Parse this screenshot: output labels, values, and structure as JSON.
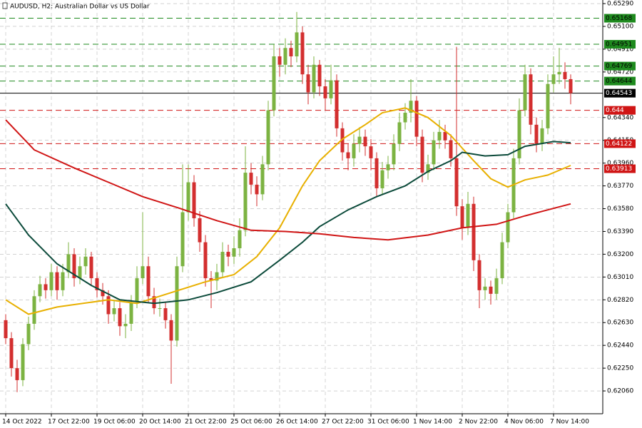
{
  "chart_data": {
    "type": "candlestick",
    "title": "AUDUSD, H2:  Australian Dollar vs US Dollar",
    "up_color": "#7cb342",
    "down_color": "#d32f2f",
    "ylim": [
      0.6187,
      0.6532
    ],
    "yticks": [
      {
        "value": 0.6529,
        "label": "0.65290"
      },
      {
        "value": 0.651,
        "label": "0.65100"
      },
      {
        "value": 0.6491,
        "label": "0.64910"
      },
      {
        "value": 0.6472,
        "label": "0.64720"
      },
      {
        "value": 0.6434,
        "label": "0.64340"
      },
      {
        "value": 0.6415,
        "label": "0.64150"
      },
      {
        "value": 0.6396,
        "label": "0.63960"
      },
      {
        "value": 0.6377,
        "label": "0.63770"
      },
      {
        "value": 0.6358,
        "label": "0.63580"
      },
      {
        "value": 0.6339,
        "label": "0.63390"
      },
      {
        "value": 0.632,
        "label": "0.63200"
      },
      {
        "value": 0.6301,
        "label": "0.63010"
      },
      {
        "value": 0.6282,
        "label": "0.62820"
      },
      {
        "value": 0.6263,
        "label": "0.62630"
      },
      {
        "value": 0.6244,
        "label": "0.62440"
      },
      {
        "value": 0.6225,
        "label": "0.62250"
      },
      {
        "value": 0.6206,
        "label": "0.62060"
      }
    ],
    "xticks": [
      {
        "value": 0,
        "label": "14 Oct 2022"
      },
      {
        "value": 8,
        "label": "17 Oct 22:00"
      },
      {
        "value": 16,
        "label": "19 Oct 06:00"
      },
      {
        "value": 24,
        "label": "20 Oct 14:00"
      },
      {
        "value": 32,
        "label": "21 Oct 22:00"
      },
      {
        "value": 40,
        "label": "25 Oct 06:00"
      },
      {
        "value": 48,
        "label": "26 Oct 14:00"
      },
      {
        "value": 56,
        "label": "27 Oct 22:00"
      },
      {
        "value": 64,
        "label": "31 Oct 06:00"
      },
      {
        "value": 72,
        "label": "1 Nov 14:00"
      },
      {
        "value": 80,
        "label": "2 Nov 22:00"
      },
      {
        "value": 88,
        "label": "4 Nov 06:00"
      },
      {
        "value": 96,
        "label": "7 Nov 14:00"
      }
    ],
    "grid": true,
    "open": [
      0.6265,
      0.625,
      0.6225,
      0.6215,
      0.6245,
      0.6262,
      0.6285,
      0.6295,
      0.629,
      0.6305,
      0.629,
      0.6305,
      0.632,
      0.63,
      0.631,
      0.6318,
      0.63,
      0.629,
      0.6285,
      0.627,
      0.6275,
      0.626,
      0.6262,
      0.628,
      0.63,
      0.631,
      0.6285,
      0.6275,
      0.6275,
      0.6265,
      0.6248,
      0.631,
      0.6355,
      0.638,
      0.635,
      0.633,
      0.63,
      0.6298,
      0.6305,
      0.6322,
      0.6318,
      0.6325,
      0.634,
      0.6388,
      0.6378,
      0.637,
      0.6395,
      0.644,
      0.6485,
      0.6478,
      0.6492,
      0.6485,
      0.6505,
      0.647,
      0.6455,
      0.6478,
      0.646,
      0.645,
      0.6465,
      0.6425,
      0.6405,
      0.64,
      0.6412,
      0.6418,
      0.641,
      0.64,
      0.6375,
      0.639,
      0.6395,
      0.6412,
      0.643,
      0.6438,
      0.6448,
      0.6418,
      0.6388,
      0.6395,
      0.6415,
      0.6422,
      0.6415,
      0.64,
      0.636,
      0.6342,
      0.6362,
      0.6315,
      0.629,
      0.6293,
      0.6287,
      0.63,
      0.633,
      0.6355,
      0.64,
      0.644,
      0.647,
      0.6428,
      0.6412,
      0.6425,
      0.6462,
      0.647,
      0.6472,
      0.6466
    ],
    "high": [
      0.627,
      0.6255,
      0.6232,
      0.625,
      0.6268,
      0.629,
      0.6302,
      0.63,
      0.6312,
      0.631,
      0.6312,
      0.633,
      0.6325,
      0.6318,
      0.6325,
      0.6322,
      0.6305,
      0.6296,
      0.629,
      0.6282,
      0.628,
      0.627,
      0.6286,
      0.631,
      0.6355,
      0.6318,
      0.6292,
      0.6283,
      0.628,
      0.627,
      0.6318,
      0.6395,
      0.6395,
      0.6386,
      0.6356,
      0.6336,
      0.6306,
      0.6312,
      0.633,
      0.6328,
      0.6335,
      0.635,
      0.641,
      0.6396,
      0.6385,
      0.6402,
      0.6448,
      0.6495,
      0.6492,
      0.65,
      0.6498,
      0.6522,
      0.651,
      0.6478,
      0.6485,
      0.6482,
      0.6466,
      0.6478,
      0.647,
      0.643,
      0.6412,
      0.642,
      0.6426,
      0.6424,
      0.6416,
      0.6405,
      0.6397,
      0.6402,
      0.642,
      0.6438,
      0.6446,
      0.6466,
      0.6452,
      0.6424,
      0.6403,
      0.6422,
      0.6432,
      0.6428,
      0.642,
      0.6493,
      0.6366,
      0.6372,
      0.6368,
      0.632,
      0.63,
      0.6298,
      0.6308,
      0.6338,
      0.6362,
      0.6408,
      0.645,
      0.6478,
      0.6475,
      0.6434,
      0.6432,
      0.647,
      0.6485,
      0.6492,
      0.648,
      0.647
    ],
    "low": [
      0.6245,
      0.6218,
      0.6205,
      0.621,
      0.624,
      0.6257,
      0.628,
      0.6283,
      0.6285,
      0.6282,
      0.6285,
      0.63,
      0.6293,
      0.6295,
      0.6303,
      0.6294,
      0.6284,
      0.6278,
      0.6262,
      0.6264,
      0.6252,
      0.625,
      0.6256,
      0.6275,
      0.6295,
      0.628,
      0.627,
      0.6268,
      0.6258,
      0.6212,
      0.6243,
      0.6305,
      0.6348,
      0.6343,
      0.6322,
      0.6293,
      0.6275,
      0.629,
      0.63,
      0.631,
      0.6312,
      0.6318,
      0.6335,
      0.637,
      0.636,
      0.6365,
      0.639,
      0.6435,
      0.6468,
      0.647,
      0.6476,
      0.648,
      0.6462,
      0.6445,
      0.645,
      0.6452,
      0.644,
      0.6445,
      0.6418,
      0.6398,
      0.639,
      0.6393,
      0.6405,
      0.6402,
      0.639,
      0.6368,
      0.637,
      0.6383,
      0.639,
      0.6406,
      0.6424,
      0.643,
      0.641,
      0.638,
      0.6382,
      0.639,
      0.6408,
      0.6408,
      0.6393,
      0.6352,
      0.6332,
      0.6336,
      0.6306,
      0.6275,
      0.6282,
      0.6278,
      0.6282,
      0.6295,
      0.6325,
      0.635,
      0.6395,
      0.6435,
      0.642,
      0.6405,
      0.6406,
      0.642,
      0.6455,
      0.6462,
      0.6458,
      0.6445
    ],
    "close": [
      0.625,
      0.6225,
      0.6215,
      0.6245,
      0.6262,
      0.6285,
      0.6295,
      0.629,
      0.6305,
      0.629,
      0.6305,
      0.632,
      0.63,
      0.631,
      0.6318,
      0.63,
      0.629,
      0.6285,
      0.627,
      0.6275,
      0.626,
      0.6262,
      0.628,
      0.63,
      0.631,
      0.6285,
      0.6275,
      0.6275,
      0.6265,
      0.6248,
      0.631,
      0.6355,
      0.638,
      0.635,
      0.633,
      0.63,
      0.6298,
      0.6305,
      0.6322,
      0.6318,
      0.6325,
      0.634,
      0.6388,
      0.6378,
      0.637,
      0.6395,
      0.644,
      0.6485,
      0.6478,
      0.6492,
      0.6485,
      0.6505,
      0.647,
      0.6455,
      0.6478,
      0.646,
      0.645,
      0.6465,
      0.6425,
      0.6405,
      0.64,
      0.6412,
      0.6418,
      0.641,
      0.64,
      0.6375,
      0.639,
      0.6395,
      0.6412,
      0.643,
      0.6438,
      0.6448,
      0.6418,
      0.6388,
      0.6395,
      0.6415,
      0.6422,
      0.6415,
      0.64,
      0.636,
      0.6342,
      0.6362,
      0.6315,
      0.629,
      0.6293,
      0.6287,
      0.63,
      0.633,
      0.6355,
      0.64,
      0.644,
      0.647,
      0.6428,
      0.6412,
      0.6425,
      0.6462,
      0.647,
      0.6472,
      0.6466,
      0.64543
    ],
    "lines": [
      {
        "color": "#e8b000",
        "x": [
          0,
          4,
          9,
          18,
          23,
          29,
          35,
          40,
          44,
          48,
          52,
          55,
          59,
          63,
          66,
          70,
          74,
          78,
          82,
          85,
          88,
          91,
          95,
          99
        ],
        "values": [
          0.6282,
          0.627,
          0.6276,
          0.6282,
          0.6279,
          0.6288,
          0.6297,
          0.6303,
          0.6318,
          0.6342,
          0.6377,
          0.6398,
          0.6416,
          0.6428,
          0.6438,
          0.6442,
          0.6434,
          0.6419,
          0.6398,
          0.6383,
          0.6376,
          0.6382,
          0.6386,
          0.6394
        ]
      },
      {
        "color": "#0b4a3a",
        "x": [
          0,
          4,
          9,
          15,
          20,
          26,
          32,
          37,
          43,
          48,
          52,
          55,
          60,
          65,
          70,
          74,
          78,
          80,
          84,
          88,
          91,
          96,
          99
        ],
        "values": [
          0.6362,
          0.6336,
          0.6312,
          0.6294,
          0.6282,
          0.6279,
          0.6282,
          0.6288,
          0.6297,
          0.6315,
          0.633,
          0.6343,
          0.6357,
          0.6368,
          0.6377,
          0.6389,
          0.6398,
          0.6405,
          0.6402,
          0.6403,
          0.641,
          0.6414,
          0.6413
        ]
      },
      {
        "color": "#d01515",
        "x": [
          0,
          5,
          12,
          18,
          24,
          30,
          37,
          43,
          49,
          55,
          61,
          67,
          74,
          80,
          86,
          91,
          99
        ],
        "values": [
          0.6432,
          0.6407,
          0.6392,
          0.638,
          0.6368,
          0.6359,
          0.6348,
          0.634,
          0.6339,
          0.6337,
          0.6334,
          0.6332,
          0.6336,
          0.6342,
          0.6345,
          0.6352,
          0.6362
        ]
      }
    ],
    "levels": [
      {
        "value": 0.65168,
        "color": "#1e8a1e",
        "style": "dashed"
      },
      {
        "value": 0.64951,
        "color": "#1e8a1e",
        "style": "dashed"
      },
      {
        "value": 0.64769,
        "color": "#1e8a1e",
        "style": "dashed"
      },
      {
        "value": 0.64644,
        "color": "#1e8a1e",
        "style": "dashed"
      },
      {
        "value": 0.64543,
        "color": "#000000",
        "style": "solid"
      },
      {
        "value": 0.644,
        "color": "#d01515",
        "style": "dashed"
      },
      {
        "value": 0.64122,
        "color": "#d01515",
        "style": "dashed"
      },
      {
        "value": 0.63913,
        "color": "#d01515",
        "style": "dashed"
      }
    ]
  }
}
